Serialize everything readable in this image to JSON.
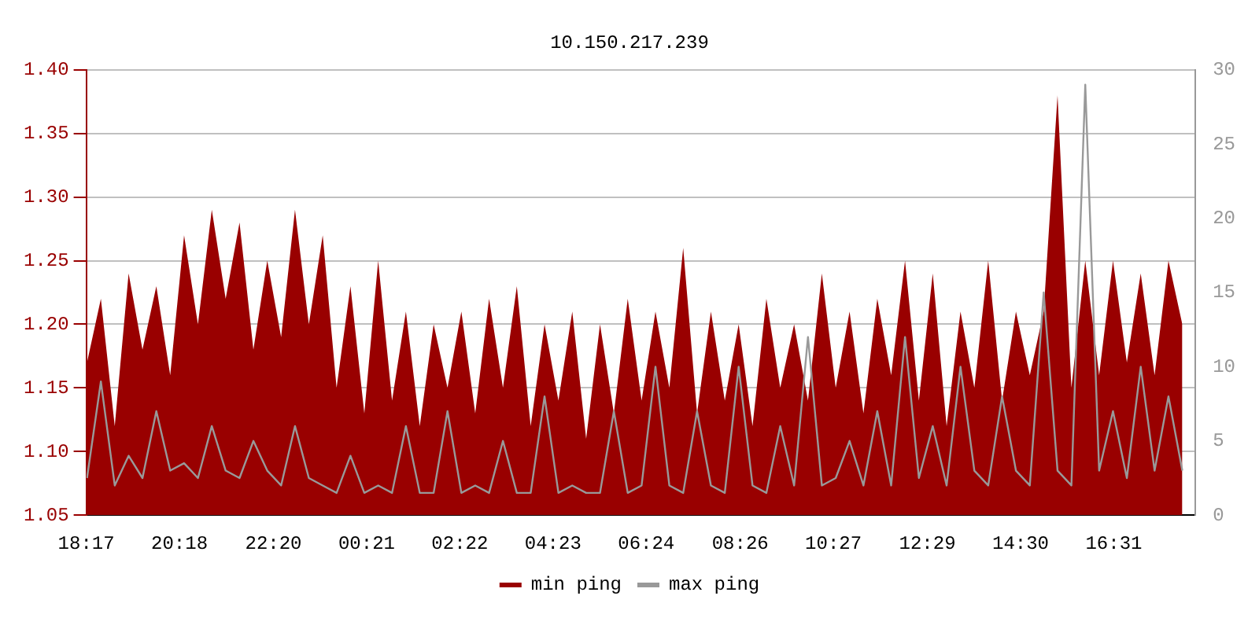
{
  "chart_data": {
    "type": "line",
    "title": "10.150.217.239",
    "x": [
      "--01-01T18:18",
      "--01-01T18:36",
      "--01-01T18:54",
      "--01-01T19:12",
      "--01-01T19:30",
      "--01-01T19:48",
      "--01-01T20:06",
      "--01-01T20:24",
      "--01-01T20:42",
      "--01-01T21:00",
      "--01-01T21:18",
      "--01-01T21:36",
      "--01-01T21:54",
      "--01-01T22:12",
      "--01-01T22:30",
      "--01-01T22:48",
      "--01-01T23:06",
      "--01-01T23:24",
      "--01-01T23:42",
      "--01-02T00:00",
      "--01-02T00:18",
      "--01-02T00:36",
      "--01-02T00:54",
      "--01-02T01:12",
      "--01-02T01:30",
      "--01-02T01:48",
      "--01-02T02:06",
      "--01-02T02:24",
      "--01-02T02:42",
      "--01-02T03:00",
      "--01-02T03:18",
      "--01-02T03:36",
      "--01-02T03:54",
      "--01-02T04:12",
      "--01-02T04:30",
      "--01-02T04:48",
      "--01-02T05:06",
      "--01-02T05:24",
      "--01-02T05:42",
      "--01-02T06:00",
      "--01-02T06:18",
      "--01-02T06:36",
      "--01-02T06:54",
      "--01-02T07:12",
      "--01-02T07:30",
      "--01-02T07:48",
      "--01-02T08:06",
      "--01-02T08:24",
      "--01-02T08:42",
      "--01-02T09:00",
      "--01-02T09:18",
      "--01-02T09:36",
      "--01-02T09:54",
      "--01-02T10:12",
      "--01-02T10:30",
      "--01-02T10:48",
      "--01-02T11:06",
      "--01-02T11:24",
      "--01-02T11:42",
      "--01-02T12:00",
      "--01-02T12:18",
      "--01-02T12:36",
      "--01-02T12:54",
      "--01-02T13:12",
      "--01-02T13:30",
      "--01-02T13:48",
      "--01-02T14:06",
      "--01-02T14:24",
      "--01-02T14:42",
      "--01-02T15:00",
      "--01-02T15:18",
      "--01-02T15:36",
      "--01-02T15:54",
      "--01-02T16:12",
      "--01-02T16:30",
      "--01-02T16:48",
      "--01-02T17:06",
      "--01-02T17:24",
      "--01-02T17:42",
      "--01-02T18:00"
    ],
    "series": [
      {
        "name": "min ping",
        "type": "area",
        "color": "#990000",
        "values": [
          1.17,
          1.22,
          1.12,
          1.24,
          1.18,
          1.23,
          1.16,
          1.27,
          1.2,
          1.29,
          1.22,
          1.28,
          1.18,
          1.25,
          1.19,
          1.29,
          1.2,
          1.27,
          1.15,
          1.23,
          1.13,
          1.25,
          1.14,
          1.21,
          1.12,
          1.2,
          1.15,
          1.21,
          1.13,
          1.22,
          1.15,
          1.23,
          1.12,
          1.2,
          1.14,
          1.21,
          1.11,
          1.2,
          1.13,
          1.22,
          1.14,
          1.21,
          1.15,
          1.26,
          1.13,
          1.21,
          1.14,
          1.2,
          1.12,
          1.22,
          1.15,
          1.2,
          1.14,
          1.24,
          1.15,
          1.21,
          1.13,
          1.22,
          1.16,
          1.25,
          1.14,
          1.24,
          1.12,
          1.21,
          1.15,
          1.25,
          1.14,
          1.21,
          1.16,
          1.21,
          1.38,
          1.15,
          1.25,
          1.16,
          1.25,
          1.17,
          1.24,
          1.16,
          1.25,
          1.2
        ]
      },
      {
        "name": "max ping",
        "type": "line",
        "axis": "y2",
        "color": "#999999",
        "values": [
          2.5,
          9,
          2,
          4,
          2.5,
          7,
          3,
          3.5,
          2.5,
          6,
          3,
          2.5,
          5,
          3,
          2,
          6,
          2.5,
          2,
          1.5,
          4,
          1.5,
          2,
          1.5,
          6,
          1.5,
          1.5,
          7,
          1.5,
          2,
          1.5,
          5,
          1.5,
          1.5,
          8,
          1.5,
          2,
          1.5,
          1.5,
          7,
          1.5,
          2,
          10,
          2,
          1.5,
          7,
          2,
          1.5,
          10,
          2,
          1.5,
          6,
          2,
          12,
          2,
          2.5,
          5,
          2,
          7,
          2,
          12,
          2.5,
          6,
          2,
          10,
          3,
          2,
          8,
          3,
          2,
          15,
          3,
          2,
          29,
          3,
          7,
          2.5,
          10,
          3,
          8,
          3
        ]
      }
    ],
    "xlim": [
      "--01-01T18:17",
      "--01-02T18:17"
    ],
    "xticks": [
      {
        "value": "--01-01T18:17",
        "label": "18:17"
      },
      {
        "value": "--01-01T20:18",
        "label": "20:18"
      },
      {
        "value": "--01-01T22:20",
        "label": "22:20"
      },
      {
        "value": "--01-02T00:21",
        "label": "00:21"
      },
      {
        "value": "--01-02T02:22",
        "label": "02:22"
      },
      {
        "value": "--01-02T04:23",
        "label": "04:23"
      },
      {
        "value": "--01-02T06:24",
        "label": "06:24"
      },
      {
        "value": "--01-02T08:26",
        "label": "08:26"
      },
      {
        "value": "--01-02T10:27",
        "label": "10:27"
      },
      {
        "value": "--01-02T12:29",
        "label": "12:29"
      },
      {
        "value": "--01-02T14:30",
        "label": "14:30"
      },
      {
        "value": "--01-02T16:31",
        "label": "16:31"
      }
    ],
    "ylim": [
      1.05,
      1.4
    ],
    "yticks": [
      {
        "value": 1.05,
        "label": "1.05"
      },
      {
        "value": 1.1,
        "label": "1.10"
      },
      {
        "value": 1.15,
        "label": "1.15"
      },
      {
        "value": 1.2,
        "label": "1.20"
      },
      {
        "value": 1.25,
        "label": "1.25"
      },
      {
        "value": 1.3,
        "label": "1.30"
      },
      {
        "value": 1.35,
        "label": "1.35"
      },
      {
        "value": 1.4,
        "label": "1.40"
      }
    ],
    "y2lim": [
      0,
      30
    ],
    "y2ticks": [
      0,
      5,
      10,
      15,
      20,
      25,
      30
    ],
    "grid": "y",
    "legend": "bottom",
    "marker": "none",
    "line_style": "solid"
  }
}
